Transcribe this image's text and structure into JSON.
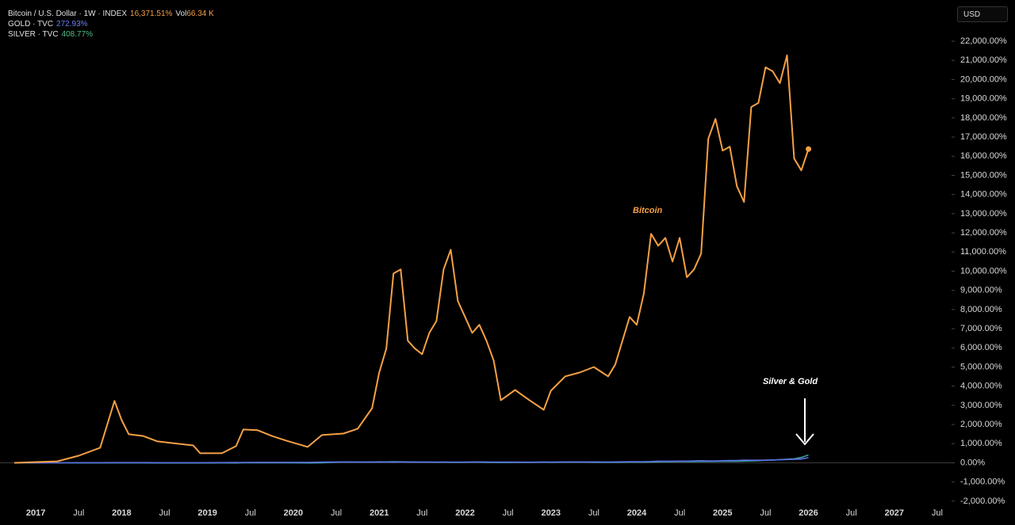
{
  "chart_data": {
    "type": "line",
    "currency": "USD",
    "annotations": [
      {
        "text": "Bitcoin",
        "color": "#f5a045"
      },
      {
        "text": "Silver & Gold",
        "color": "#ffffff"
      }
    ],
    "x": [
      "2016-10",
      "2017-01",
      "2017-04",
      "2017-07",
      "2017-10",
      "2017-12",
      "2018-01",
      "2018-02",
      "2018-04",
      "2018-06",
      "2018-09",
      "2018-11",
      "2018-12",
      "2019-03",
      "2019-05",
      "2019-06",
      "2019-08",
      "2019-10",
      "2019-12",
      "2020-03",
      "2020-05",
      "2020-08",
      "2020-10",
      "2020-12",
      "2021-01",
      "2021-02",
      "2021-03",
      "2021-04",
      "2021-05",
      "2021-06",
      "2021-07",
      "2021-08",
      "2021-09",
      "2021-10",
      "2021-11",
      "2021-12",
      "2022-01",
      "2022-02",
      "2022-03",
      "2022-04",
      "2022-05",
      "2022-06",
      "2022-08",
      "2022-10",
      "2022-12",
      "2023-01",
      "2023-03",
      "2023-05",
      "2023-07",
      "2023-09",
      "2023-10",
      "2023-12",
      "2024-01",
      "2024-02",
      "2024-03",
      "2024-04",
      "2024-05",
      "2024-06",
      "2024-07",
      "2024-08",
      "2024-09",
      "2024-10",
      "2024-11",
      "2024-12",
      "2025-01",
      "2025-02",
      "2025-03",
      "2025-04",
      "2025-05",
      "2025-06",
      "2025-07",
      "2025-08",
      "2025-09",
      "2025-10",
      "2025-11",
      "2025-12",
      "2026-01"
    ],
    "series": [
      {
        "name": "Bitcoin / U.S. Dollar · 1W · INDEX",
        "color": "#f5a045",
        "legend_value": "16,371.51%",
        "volume_label": "Vol",
        "volume_value": "66.34 K",
        "values": [
          0,
          40,
          80,
          370,
          790,
          3230,
          2230,
          1490,
          1400,
          1120,
          990,
          910,
          500,
          500,
          870,
          1740,
          1700,
          1400,
          1160,
          830,
          1450,
          1530,
          1780,
          2850,
          4710,
          5960,
          9880,
          10090,
          6370,
          5960,
          5670,
          6780,
          7400,
          10090,
          11120,
          8440,
          7610,
          6780,
          7200,
          6370,
          5340,
          3270,
          3800,
          3270,
          2770,
          3760,
          4510,
          4710,
          5000,
          4510,
          5130,
          7610,
          7200,
          8850,
          11950,
          11330,
          11740,
          10500,
          11740,
          9680,
          10090,
          10920,
          16910,
          17950,
          16290,
          16500,
          14430,
          13610,
          18570,
          18780,
          20640,
          20430,
          19810,
          21260,
          15880,
          15260,
          16371.51
        ]
      },
      {
        "name": "GOLD · TVC",
        "color": "#5b6ee1",
        "legend_value": "272.93%",
        "values": [
          0,
          2,
          5,
          8,
          10,
          12,
          14,
          14,
          12,
          10,
          8,
          8,
          10,
          12,
          15,
          20,
          25,
          25,
          25,
          25,
          35,
          50,
          45,
          45,
          45,
          40,
          38,
          40,
          42,
          38,
          40,
          40,
          38,
          40,
          42,
          40,
          42,
          44,
          48,
          46,
          42,
          38,
          35,
          32,
          38,
          42,
          48,
          50,
          48,
          46,
          50,
          58,
          58,
          60,
          72,
          85,
          88,
          85,
          90,
          92,
          100,
          110,
          105,
          100,
          110,
          120,
          125,
          140,
          135,
          135,
          140,
          150,
          160,
          175,
          180,
          200,
          272.93
        ]
      },
      {
        "name": "SILVER · TVC",
        "color": "#3aa39a",
        "legend_value": "408.77%",
        "values": [
          0,
          3,
          -2,
          -5,
          -3,
          -4,
          -2,
          -3,
          -5,
          -8,
          -10,
          -10,
          -8,
          -6,
          -8,
          0,
          5,
          2,
          3,
          -10,
          5,
          50,
          40,
          45,
          55,
          50,
          60,
          55,
          50,
          45,
          40,
          35,
          30,
          35,
          30,
          28,
          30,
          40,
          35,
          20,
          22,
          15,
          20,
          25,
          35,
          30,
          35,
          40,
          30,
          28,
          30,
          35,
          35,
          38,
          45,
          55,
          60,
          58,
          65,
          60,
          65,
          75,
          70,
          75,
          80,
          85,
          80,
          90,
          100,
          110,
          130,
          150,
          170,
          190,
          210,
          280,
          408.77
        ]
      }
    ],
    "xlim": [
      "2016-08",
      "2027-09"
    ],
    "xticks": [
      {
        "value": "2017-01",
        "label": "2017"
      },
      {
        "value": "2017-07",
        "label": "Jul"
      },
      {
        "value": "2018-01",
        "label": "2018"
      },
      {
        "value": "2018-07",
        "label": "Jul"
      },
      {
        "value": "2019-01",
        "label": "2019"
      },
      {
        "value": "2019-07",
        "label": "Jul"
      },
      {
        "value": "2020-01",
        "label": "2020"
      },
      {
        "value": "2020-07",
        "label": "Jul"
      },
      {
        "value": "2021-01",
        "label": "2021"
      },
      {
        "value": "2021-07",
        "label": "Jul"
      },
      {
        "value": "2022-01",
        "label": "2022"
      },
      {
        "value": "2022-07",
        "label": "Jul"
      },
      {
        "value": "2023-01",
        "label": "2023"
      },
      {
        "value": "2023-07",
        "label": "Jul"
      },
      {
        "value": "2024-01",
        "label": "2024"
      },
      {
        "value": "2024-07",
        "label": "Jul"
      },
      {
        "value": "2025-01",
        "label": "2025"
      },
      {
        "value": "2025-07",
        "label": "Jul"
      },
      {
        "value": "2026-01",
        "label": "2026"
      },
      {
        "value": "2026-07",
        "label": "Jul"
      },
      {
        "value": "2027-01",
        "label": "2027"
      },
      {
        "value": "2027-07",
        "label": "Jul"
      }
    ],
    "ylim": [
      -2500,
      24150
    ],
    "yticks": [
      {
        "value": -2000,
        "label": "-2,000.00%"
      },
      {
        "value": -1000,
        "label": "-1,000.00%"
      },
      {
        "value": 0,
        "label": "0.00%"
      },
      {
        "value": 1000,
        "label": "1,000.00%"
      },
      {
        "value": 2000,
        "label": "2,000.00%"
      },
      {
        "value": 3000,
        "label": "3,000.00%"
      },
      {
        "value": 4000,
        "label": "4,000.00%"
      },
      {
        "value": 5000,
        "label": "5,000.00%"
      },
      {
        "value": 6000,
        "label": "6,000.00%"
      },
      {
        "value": 7000,
        "label": "7,000.00%"
      },
      {
        "value": 8000,
        "label": "8,000.00%"
      },
      {
        "value": 9000,
        "label": "9,000.00%"
      },
      {
        "value": 10000,
        "label": "10,000.00%"
      },
      {
        "value": 11000,
        "label": "11,000.00%"
      },
      {
        "value": 12000,
        "label": "12,000.00%"
      },
      {
        "value": 13000,
        "label": "13,000.00%"
      },
      {
        "value": 14000,
        "label": "14,000.00%"
      },
      {
        "value": 15000,
        "label": "15,000.00%"
      },
      {
        "value": 16000,
        "label": "16,000.00%"
      },
      {
        "value": 17000,
        "label": "17,000.00%"
      },
      {
        "value": 18000,
        "label": "18,000.00%"
      },
      {
        "value": 19000,
        "label": "19,000.00%"
      },
      {
        "value": 20000,
        "label": "20,000.00%"
      },
      {
        "value": 21000,
        "label": "21,000.00%"
      },
      {
        "value": 22000,
        "label": "22,000.00%"
      }
    ],
    "grid": false
  }
}
